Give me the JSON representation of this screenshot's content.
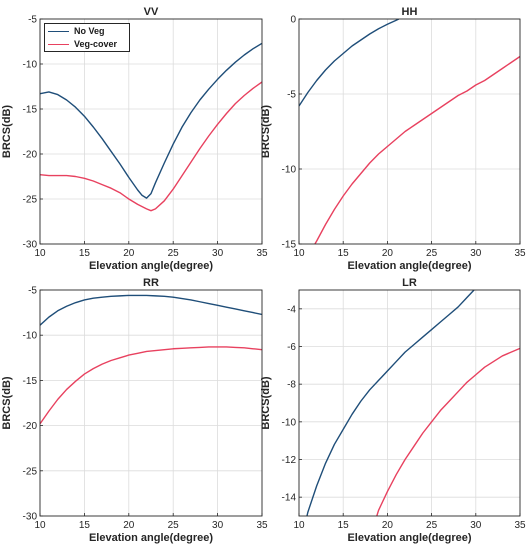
{
  "colors": {
    "no_veg": "#1f4e79",
    "veg_cover": "#e8415f",
    "grid": "#dcdcdc",
    "axis": "#262626"
  },
  "legend": {
    "placement": "top-left of VV panel",
    "entries": [
      {
        "label": "No Veg",
        "color": "#1f4e79"
      },
      {
        "label": "Veg-cover",
        "color": "#e8415f"
      }
    ]
  },
  "chart_data": [
    {
      "type": "line",
      "title": "VV",
      "xlabel": "Elevation angle(degree)",
      "ylabel": "BRCS(dB)",
      "xlim": [
        10,
        35
      ],
      "ylim": [
        -30,
        -5
      ],
      "xticks": [
        10,
        15,
        20,
        25,
        30,
        35
      ],
      "yticks": [
        -30,
        -25,
        -20,
        -15,
        -10,
        -5
      ],
      "grid": true,
      "legend": true,
      "series": [
        {
          "name": "No Veg",
          "color": "#1f4e79",
          "x": [
            10,
            11,
            12,
            13,
            14,
            15,
            16,
            17,
            18,
            19,
            20,
            21,
            21.5,
            22,
            22.5,
            23,
            24,
            25,
            26,
            27,
            28,
            29,
            30,
            31,
            32,
            33,
            34,
            35
          ],
          "y": [
            -13.3,
            -13.1,
            -13.4,
            -14.0,
            -14.8,
            -15.8,
            -17.0,
            -18.3,
            -19.7,
            -21.1,
            -22.6,
            -24.0,
            -24.6,
            -24.9,
            -24.4,
            -23.2,
            -21.0,
            -18.9,
            -17.0,
            -15.4,
            -14.0,
            -12.8,
            -11.7,
            -10.7,
            -9.8,
            -9.0,
            -8.3,
            -7.7
          ]
        },
        {
          "name": "Veg-cover",
          "color": "#e8415f",
          "x": [
            10,
            11,
            12,
            13,
            14,
            15,
            16,
            17,
            18,
            19,
            20,
            21,
            22,
            22.5,
            23,
            24,
            25,
            26,
            27,
            28,
            29,
            30,
            31,
            32,
            33,
            34,
            35
          ],
          "y": [
            -22.3,
            -22.4,
            -22.4,
            -22.4,
            -22.5,
            -22.7,
            -23.0,
            -23.4,
            -23.8,
            -24.3,
            -25.0,
            -25.6,
            -26.1,
            -26.3,
            -26.1,
            -25.2,
            -23.9,
            -22.4,
            -20.9,
            -19.4,
            -18.0,
            -16.7,
            -15.5,
            -14.4,
            -13.5,
            -12.7,
            -12.0
          ]
        }
      ]
    },
    {
      "type": "line",
      "title": "HH",
      "xlabel": "Elevation angle(degree)",
      "ylabel": "BRCS(dB)",
      "xlim": [
        10,
        35
      ],
      "ylim": [
        -15,
        0
      ],
      "xticks": [
        10,
        15,
        20,
        25,
        30,
        35
      ],
      "yticks": [
        -15,
        -10,
        -5,
        0
      ],
      "grid": true,
      "legend": false,
      "series": [
        {
          "name": "No Veg",
          "color": "#1f4e79",
          "x": [
            10,
            11,
            12,
            13,
            14,
            15,
            16,
            17,
            18,
            19,
            20,
            21,
            21.3
          ],
          "y": [
            -5.8,
            -4.9,
            -4.1,
            -3.4,
            -2.8,
            -2.3,
            -1.8,
            -1.4,
            -1.0,
            -0.65,
            -0.35,
            -0.08,
            0
          ]
        },
        {
          "name": "Veg-cover",
          "color": "#e8415f",
          "x": [
            11.8,
            12,
            13,
            14,
            15,
            16,
            17,
            18,
            19,
            20,
            21,
            22,
            23,
            24,
            25,
            26,
            27,
            28,
            29,
            30,
            31,
            32,
            33,
            34,
            35
          ],
          "y": [
            -15,
            -14.8,
            -13.7,
            -12.7,
            -11.8,
            -11.0,
            -10.3,
            -9.6,
            -9.0,
            -8.5,
            -8.0,
            -7.5,
            -7.1,
            -6.7,
            -6.3,
            -5.9,
            -5.5,
            -5.1,
            -4.8,
            -4.4,
            -4.1,
            -3.7,
            -3.3,
            -2.9,
            -2.5
          ]
        }
      ]
    },
    {
      "type": "line",
      "title": "RR",
      "xlabel": "Elevation angle(degree)",
      "ylabel": "BRCS(dB)",
      "xlim": [
        10,
        35
      ],
      "ylim": [
        -30,
        -5
      ],
      "xticks": [
        10,
        15,
        20,
        25,
        30,
        35
      ],
      "yticks": [
        -30,
        -25,
        -20,
        -15,
        -10,
        -5
      ],
      "grid": true,
      "legend": false,
      "series": [
        {
          "name": "No Veg",
          "color": "#1f4e79",
          "x": [
            10,
            11,
            12,
            13,
            14,
            15,
            16,
            17,
            18,
            19,
            20,
            21,
            22,
            23,
            24,
            25,
            26,
            27,
            28,
            29,
            30,
            31,
            32,
            33,
            34,
            35
          ],
          "y": [
            -8.9,
            -8.0,
            -7.3,
            -6.8,
            -6.4,
            -6.1,
            -5.9,
            -5.8,
            -5.7,
            -5.65,
            -5.6,
            -5.6,
            -5.6,
            -5.65,
            -5.7,
            -5.8,
            -5.95,
            -6.1,
            -6.3,
            -6.5,
            -6.7,
            -6.9,
            -7.1,
            -7.3,
            -7.5,
            -7.7
          ]
        },
        {
          "name": "Veg-cover",
          "color": "#e8415f",
          "x": [
            10,
            11,
            12,
            13,
            14,
            15,
            16,
            17,
            18,
            19,
            20,
            21,
            22,
            23,
            24,
            25,
            26,
            27,
            28,
            29,
            30,
            31,
            32,
            33,
            34,
            35
          ],
          "y": [
            -19.8,
            -18.4,
            -17.1,
            -16.0,
            -15.1,
            -14.3,
            -13.7,
            -13.2,
            -12.8,
            -12.5,
            -12.2,
            -12.0,
            -11.8,
            -11.7,
            -11.6,
            -11.5,
            -11.45,
            -11.4,
            -11.35,
            -11.3,
            -11.3,
            -11.3,
            -11.35,
            -11.4,
            -11.5,
            -11.6
          ]
        }
      ]
    },
    {
      "type": "line",
      "title": "LR",
      "xlabel": "Elevation angle(degree)",
      "ylabel": "BRCS(dB)",
      "xlim": [
        10,
        35
      ],
      "ylim": [
        -15,
        -3
      ],
      "xticks": [
        10,
        15,
        20,
        25,
        30,
        35
      ],
      "yticks": [
        -14,
        -12,
        -10,
        -8,
        -6,
        -4
      ],
      "grid": true,
      "legend": false,
      "series": [
        {
          "name": "No Veg",
          "color": "#1f4e79",
          "x": [
            10.9,
            11,
            12,
            13,
            14,
            15,
            16,
            17,
            18,
            19,
            20,
            21,
            22,
            23,
            24,
            25,
            26,
            27,
            28,
            29,
            29.8
          ],
          "y": [
            -15,
            -14.8,
            -13.4,
            -12.2,
            -11.2,
            -10.4,
            -9.6,
            -8.9,
            -8.3,
            -7.8,
            -7.3,
            -6.8,
            -6.3,
            -5.9,
            -5.5,
            -5.1,
            -4.7,
            -4.3,
            -3.9,
            -3.4,
            -3.0
          ]
        },
        {
          "name": "Veg-cover",
          "color": "#e8415f",
          "x": [
            18.8,
            19,
            20,
            21,
            22,
            23,
            24,
            25,
            26,
            27,
            28,
            29,
            30,
            31,
            32,
            33,
            34,
            35
          ],
          "y": [
            -15,
            -14.7,
            -13.7,
            -12.8,
            -12.0,
            -11.3,
            -10.6,
            -10.0,
            -9.4,
            -8.9,
            -8.4,
            -7.9,
            -7.5,
            -7.1,
            -6.8,
            -6.5,
            -6.3,
            -6.1
          ]
        }
      ]
    }
  ]
}
